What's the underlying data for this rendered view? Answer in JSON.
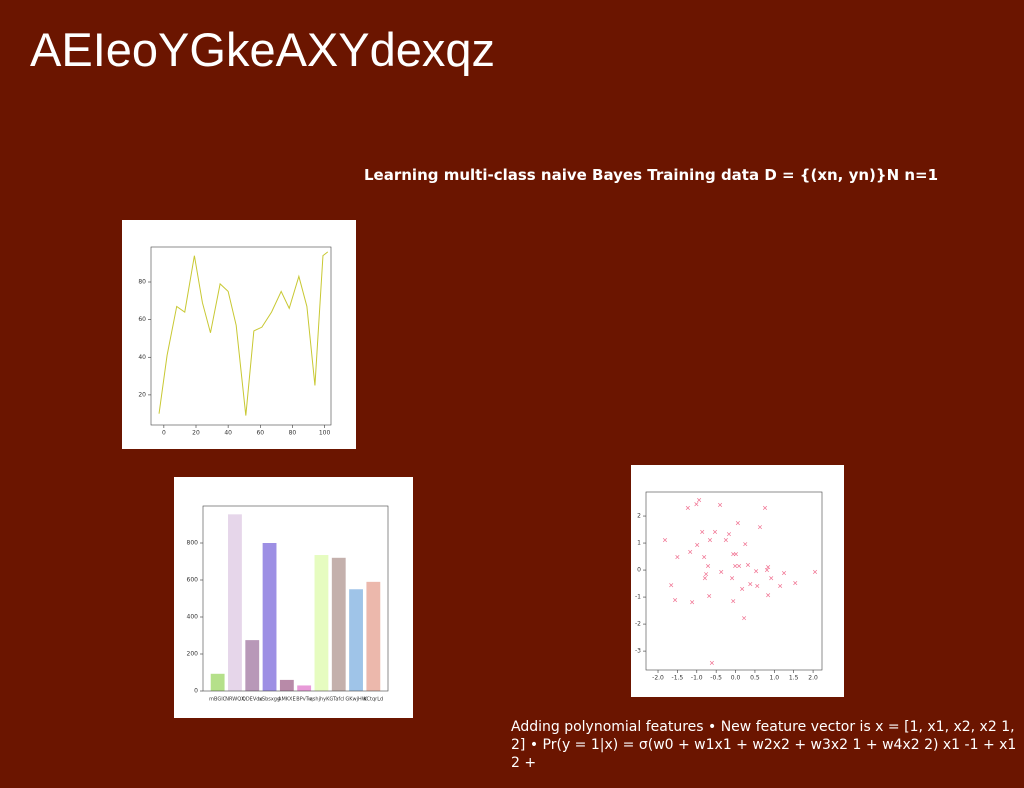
{
  "title": "AEIeoYGkeAXYdexqz",
  "subtitle": "Learning multi-class naive Bayes Training data D = {(xn, yn)}N n=1",
  "body": "Adding polynomial features • New feature vector is x = [1, x1, x2, x2 1, 2] • Pr(y = 1|x) = σ(w0 + w1x1 + w2x2 + w3x2 1 + w4x2 2) x1 -1 + x1 2 +",
  "chart_data": [
    {
      "type": "line",
      "color": "#c8c832",
      "x": [
        -3,
        2,
        8,
        13,
        19,
        24,
        29,
        35,
        40,
        45,
        51,
        56,
        61,
        67,
        73,
        78,
        84,
        89,
        94,
        99,
        102
      ],
      "values": [
        10,
        41,
        67,
        64,
        94,
        69,
        53,
        79,
        75,
        57,
        9,
        54,
        56,
        64,
        75,
        66,
        83,
        67,
        25,
        94,
        96
      ],
      "xlim": [
        -8,
        104
      ],
      "xticks": [
        0,
        20,
        40,
        60,
        80,
        100
      ],
      "ylim": [
        4,
        98.6
      ],
      "yticks": [
        20,
        40,
        60,
        80
      ]
    },
    {
      "type": "bar",
      "categories": [
        "mBGIC",
        "NRWQX",
        "QDEVdu",
        "xSbsxgg",
        "AMKXE",
        "BPvTw",
        "qshjhyKG",
        "Tafcl",
        "GKwjHW",
        "KCtqrLd"
      ],
      "values": [
        93,
        955,
        275,
        800,
        60,
        30,
        735,
        720,
        550,
        590
      ],
      "colors": [
        "#b5e08a",
        "#e6d6ea",
        "#b898b8",
        "#9d8fe4",
        "#b88aa8",
        "#e89ad8",
        "#e6fcc0",
        "#c4b0ac",
        "#9fc4e8",
        "#ecb8ac"
      ],
      "ylim": [
        0,
        1000
      ],
      "yticks": [
        0,
        200,
        400,
        600,
        800
      ]
    },
    {
      "type": "scatter",
      "color": "#f07090",
      "x": [
        -1.82,
        -1.66,
        -1.56,
        -1.5,
        -1.23,
        -1.17,
        -1.12,
        -1.01,
        -0.99,
        -0.94,
        -0.86,
        -0.81,
        -0.79,
        -0.76,
        -0.71,
        -0.68,
        -0.66,
        -0.61,
        -0.53,
        -0.4,
        -0.37,
        -0.25,
        -0.17,
        -0.09,
        -0.06,
        -0.06,
        0.01,
        -0.01,
        0.06,
        0.09,
        0.17,
        0.22,
        0.25,
        0.32,
        0.38,
        0.53,
        0.56,
        0.63,
        0.76,
        0.81,
        0.84,
        0.84,
        0.92,
        1.15,
        1.25,
        1.54,
        2.05
      ],
      "values": [
        1.11,
        -0.56,
        -1.11,
        0.48,
        2.3,
        0.67,
        -1.19,
        2.44,
        0.93,
        2.59,
        1.41,
        0.48,
        -0.3,
        -0.15,
        0.15,
        -0.96,
        1.11,
        -3.44,
        1.41,
        2.41,
        -0.07,
        1.11,
        1.33,
        -0.3,
        -1.15,
        0.59,
        0.59,
        0.15,
        1.74,
        0.15,
        -0.7,
        -1.78,
        0.96,
        0.19,
        -0.52,
        -0.04,
        -0.59,
        1.59,
        2.3,
        0,
        0.11,
        -0.93,
        -0.3,
        -0.59,
        -0.11,
        -0.48,
        -0.07
      ],
      "xlim": [
        -2.31,
        2.23
      ],
      "xticks": [
        {
          "value": -2,
          "label": "-2.0"
        },
        {
          "value": -1.5,
          "label": "-1.5"
        },
        {
          "value": -1,
          "label": "-1.0"
        },
        {
          "value": -0.5,
          "label": "-0.5"
        },
        {
          "value": 0,
          "label": "0.0"
        },
        {
          "value": 0.5,
          "label": "0.5"
        },
        {
          "value": 1,
          "label": "1.0"
        },
        {
          "value": 1.5,
          "label": "1.5"
        },
        {
          "value": 2,
          "label": "2.0"
        }
      ],
      "ylim": [
        -3.7,
        2.89
      ],
      "yticks": [
        -3,
        -2,
        -1,
        0,
        1,
        2
      ]
    }
  ]
}
